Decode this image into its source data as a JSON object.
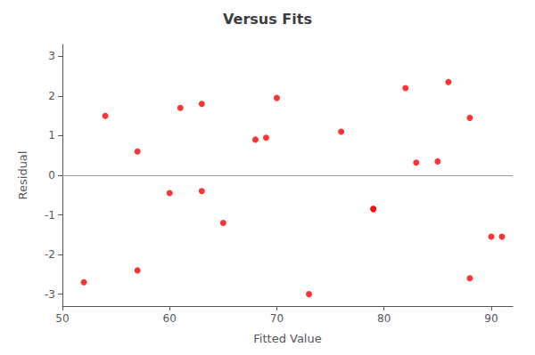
{
  "chart_data": {
    "type": "scatter",
    "title": "Versus Fits",
    "xlabel": "Fitted Value",
    "ylabel": "Residual",
    "x": [
      52,
      54,
      57,
      57,
      60,
      61,
      63,
      63,
      65,
      68,
      69,
      70,
      73,
      76,
      79,
      79,
      82,
      83,
      85,
      86,
      88,
      88,
      90,
      91
    ],
    "values": [
      -2.7,
      1.5,
      0.6,
      -2.4,
      -0.45,
      1.7,
      -0.4,
      1.8,
      -1.2,
      0.9,
      0.95,
      1.95,
      -3.0,
      1.1,
      -0.85,
      -0.85,
      2.2,
      0.32,
      0.35,
      2.35,
      1.45,
      -2.6,
      -1.55,
      -1.55
    ],
    "color": "#ff0000",
    "xlim": [
      50,
      92
    ],
    "xticks": [
      50,
      60,
      70,
      80,
      90
    ],
    "ylim": [
      -3.3,
      3.3
    ],
    "yticks": [
      -3,
      -2,
      -1,
      0,
      1,
      2,
      3
    ],
    "hline": {
      "y": 0,
      "color": "#999999"
    },
    "grid": false
  }
}
